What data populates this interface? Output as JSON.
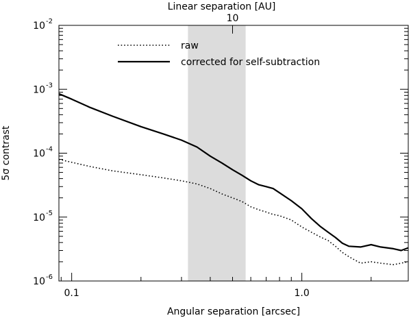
{
  "chart_data": {
    "type": "line",
    "title": "",
    "xlabel": "Angular separation [arcsec]",
    "ylabel": "5σ contrast",
    "top_axis_label": "Linear separation [AU]",
    "top_axis_tick_label": "10",
    "top_axis_tick_at_arcsec": 0.5,
    "xscale": "log",
    "yscale": "log",
    "xlim": [
      0.088,
      2.9
    ],
    "ylim": [
      1e-06,
      0.01
    ],
    "x_tick_labels": [
      {
        "value": 0.1,
        "label": "0.1"
      },
      {
        "value": 1.0,
        "label": "1.0"
      }
    ],
    "y_tick_labels": [
      {
        "value": 1e-06,
        "base": "10",
        "exp": "-6"
      },
      {
        "value": 1e-05,
        "base": "10",
        "exp": "-5"
      },
      {
        "value": 0.0001,
        "base": "10",
        "exp": "-4"
      },
      {
        "value": 0.001,
        "base": "10",
        "exp": "-3"
      },
      {
        "value": 0.01,
        "base": "10",
        "exp": "-2"
      }
    ],
    "shaded_region": {
      "x0": 0.32,
      "x1": 0.57,
      "color": "#dcdcdc"
    },
    "legend_position": "top-center",
    "grid": false,
    "series": [
      {
        "name": "raw",
        "style": "dotted",
        "color": "#000000",
        "x": [
          0.088,
          0.1,
          0.12,
          0.15,
          0.2,
          0.25,
          0.3,
          0.35,
          0.4,
          0.45,
          0.5,
          0.55,
          0.6,
          0.65,
          0.7,
          0.75,
          0.8,
          0.9,
          1.0,
          1.1,
          1.2,
          1.3,
          1.4,
          1.5,
          1.6,
          1.8,
          2.0,
          2.2,
          2.5,
          2.7,
          2.9
        ],
        "y": [
          8e-05,
          7.2e-05,
          6.2e-05,
          5.3e-05,
          4.6e-05,
          4.1e-05,
          3.7e-05,
          3.3e-05,
          2.8e-05,
          2.3e-05,
          2e-05,
          1.75e-05,
          1.45e-05,
          1.3e-05,
          1.2e-05,
          1.1e-05,
          1.05e-05,
          9e-06,
          7e-06,
          5.8e-06,
          4.9e-06,
          4.3e-06,
          3.5e-06,
          2.8e-06,
          2.4e-06,
          1.9e-06,
          2e-06,
          1.9e-06,
          1.8e-06,
          1.9e-06,
          2e-06
        ]
      },
      {
        "name": "corrected for self-subtraction",
        "style": "solid",
        "color": "#000000",
        "x": [
          0.088,
          0.1,
          0.12,
          0.15,
          0.2,
          0.25,
          0.3,
          0.35,
          0.4,
          0.45,
          0.5,
          0.55,
          0.6,
          0.65,
          0.7,
          0.75,
          0.8,
          0.9,
          1.0,
          1.1,
          1.2,
          1.3,
          1.4,
          1.5,
          1.6,
          1.8,
          2.0,
          2.2,
          2.5,
          2.7,
          2.9
        ],
        "y": [
          0.00085,
          0.0007,
          0.00052,
          0.00038,
          0.00026,
          0.0002,
          0.00016,
          0.000125,
          9e-05,
          7e-05,
          5.5e-05,
          4.5e-05,
          3.7e-05,
          3.2e-05,
          3e-05,
          2.8e-05,
          2.4e-05,
          1.8e-05,
          1.35e-05,
          9.5e-06,
          7.2e-06,
          5.8e-06,
          4.8e-06,
          3.9e-06,
          3.5e-06,
          3.4e-06,
          3.7e-06,
          3.4e-06,
          3.2e-06,
          3e-06,
          3.3e-06
        ]
      }
    ]
  }
}
